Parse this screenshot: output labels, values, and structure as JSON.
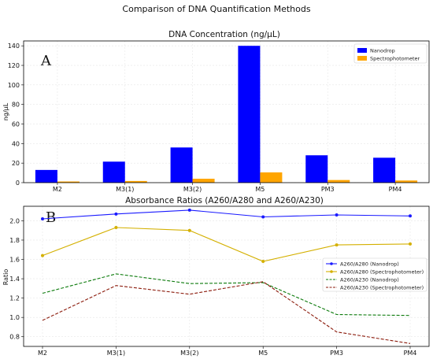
{
  "figure_title": "Comparison of DNA Quantification Methods",
  "colors": {
    "nanodrop": "#0000ff",
    "spectro": "#ffa500",
    "ratio280_nano": "#1a1aff",
    "ratio280_spec": "#d4b000",
    "ratio230_nano": "#0b7a0b",
    "ratio230_spec": "#8b1a0b"
  },
  "chart_data": [
    {
      "type": "bar",
      "panel_label": "A",
      "title": "DNA Concentration (ng/µL)",
      "xlabel": "",
      "ylabel": "ng/µL",
      "categories": [
        "M2",
        "M3(1)",
        "M3(2)",
        "M5",
        "PM3",
        "PM4"
      ],
      "series": [
        {
          "name": "Nanodrop",
          "values": [
            13,
            21.5,
            36,
            140,
            28,
            25.5
          ]
        },
        {
          "name": "Spectrophotometer",
          "values": [
            1.2,
            1.7,
            4,
            10.5,
            2.7,
            2.2
          ]
        }
      ],
      "ylim": [
        0,
        145
      ],
      "yticks": [
        0,
        20,
        40,
        60,
        80,
        100,
        120,
        140
      ],
      "grid": true,
      "legend_position": "top-right"
    },
    {
      "type": "line",
      "panel_label": "B",
      "title": "Absorbance Ratios (A260/A280 and A260/A230)",
      "xlabel": "",
      "ylabel": "Ratio",
      "categories": [
        "M2",
        "M3(1)",
        "M3(2)",
        "M5",
        "PM3",
        "PM4"
      ],
      "series": [
        {
          "name": "A260/A280 (Nanodrop)",
          "style": "solid-marker",
          "values": [
            2.02,
            2.07,
            2.11,
            2.04,
            2.06,
            2.05
          ]
        },
        {
          "name": "A260/A280 (Spectrophotometer)",
          "style": "solid-marker",
          "values": [
            1.64,
            1.93,
            1.9,
            1.58,
            1.75,
            1.76
          ]
        },
        {
          "name": "A260/A230 (Nanodrop)",
          "style": "dashed",
          "values": [
            1.25,
            1.45,
            1.35,
            1.36,
            1.03,
            1.02
          ]
        },
        {
          "name": "A260/A230 (Spectrophotometer)",
          "style": "dashed",
          "values": [
            0.97,
            1.33,
            1.24,
            1.37,
            0.85,
            0.73
          ]
        }
      ],
      "ylim": [
        0.7,
        2.15
      ],
      "yticks": [
        0.8,
        1.0,
        1.2,
        1.4,
        1.6,
        1.8,
        2.0
      ],
      "grid": true,
      "legend_position": "center-right"
    }
  ]
}
